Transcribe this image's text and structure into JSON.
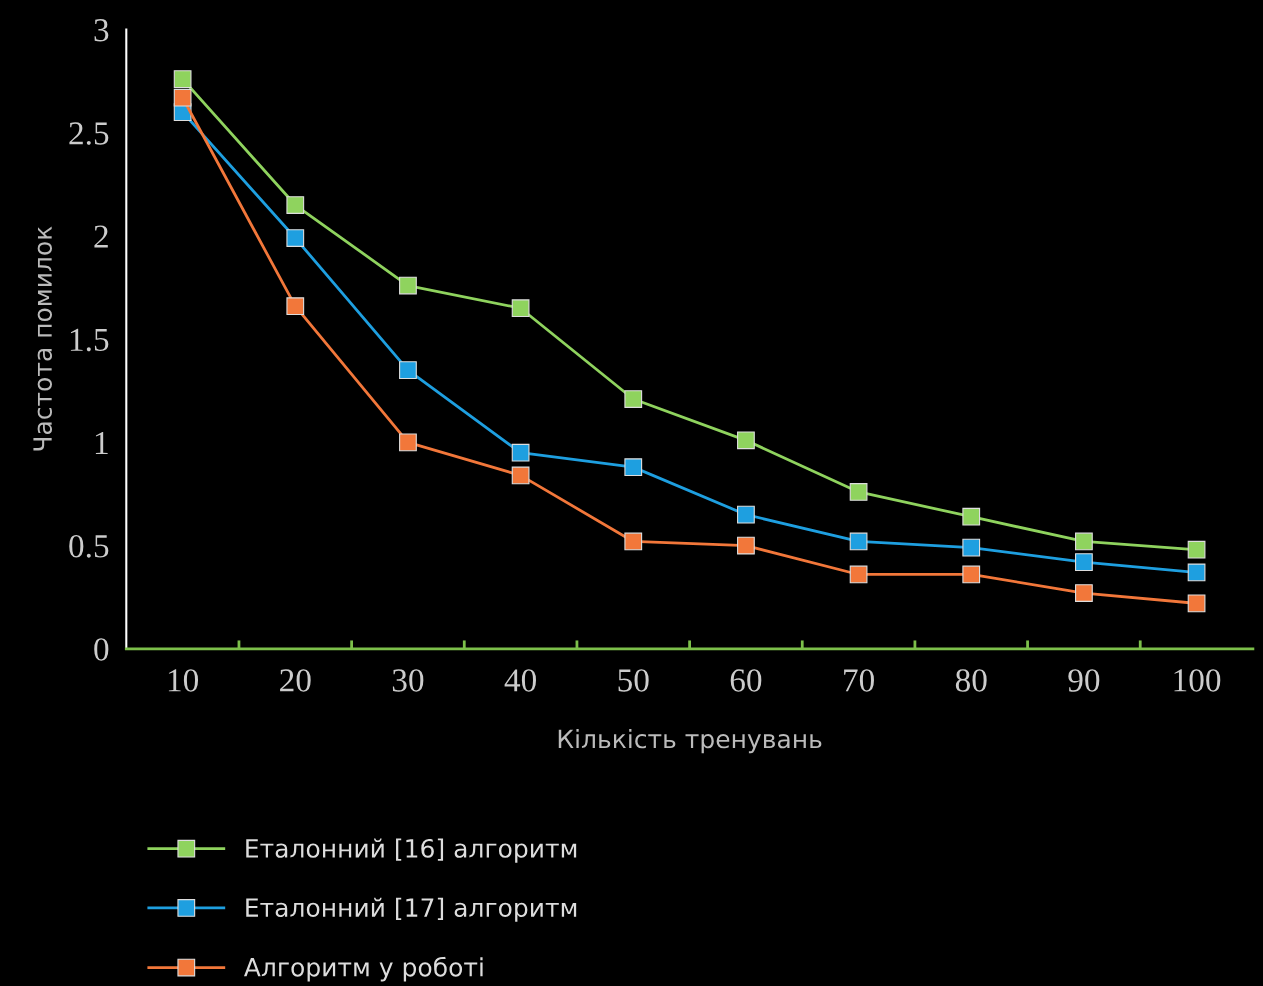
{
  "chart_data": {
    "type": "line",
    "xlabel": "Кількість тренувань",
    "ylabel": "Частота помилок",
    "categories": [
      "10",
      "20",
      "30",
      "40",
      "50",
      "60",
      "70",
      "80",
      "90",
      "100"
    ],
    "series": [
      {
        "name": "Еталонний [16] алгоритм",
        "color": "#8fd35e",
        "values": [
          2.76,
          2.15,
          1.76,
          1.65,
          1.21,
          1.01,
          0.76,
          0.64,
          0.52,
          0.48
        ]
      },
      {
        "name": "Еталонний [17] алгоритм",
        "color": "#1e9fe0",
        "values": [
          2.6,
          1.99,
          1.35,
          0.95,
          0.88,
          0.65,
          0.52,
          0.49,
          0.42,
          0.37
        ]
      },
      {
        "name": "Алгоритм у роботі",
        "color": "#f2773a",
        "values": [
          2.67,
          1.66,
          1.0,
          0.84,
          0.52,
          0.5,
          0.36,
          0.36,
          0.27,
          0.22
        ]
      }
    ],
    "ylim": [
      0,
      3
    ],
    "yticks": [
      0,
      0.5,
      1,
      1.5,
      2,
      2.5,
      3
    ],
    "grid": false,
    "legend": "bottom",
    "marker": "square",
    "line_style": "solid"
  }
}
